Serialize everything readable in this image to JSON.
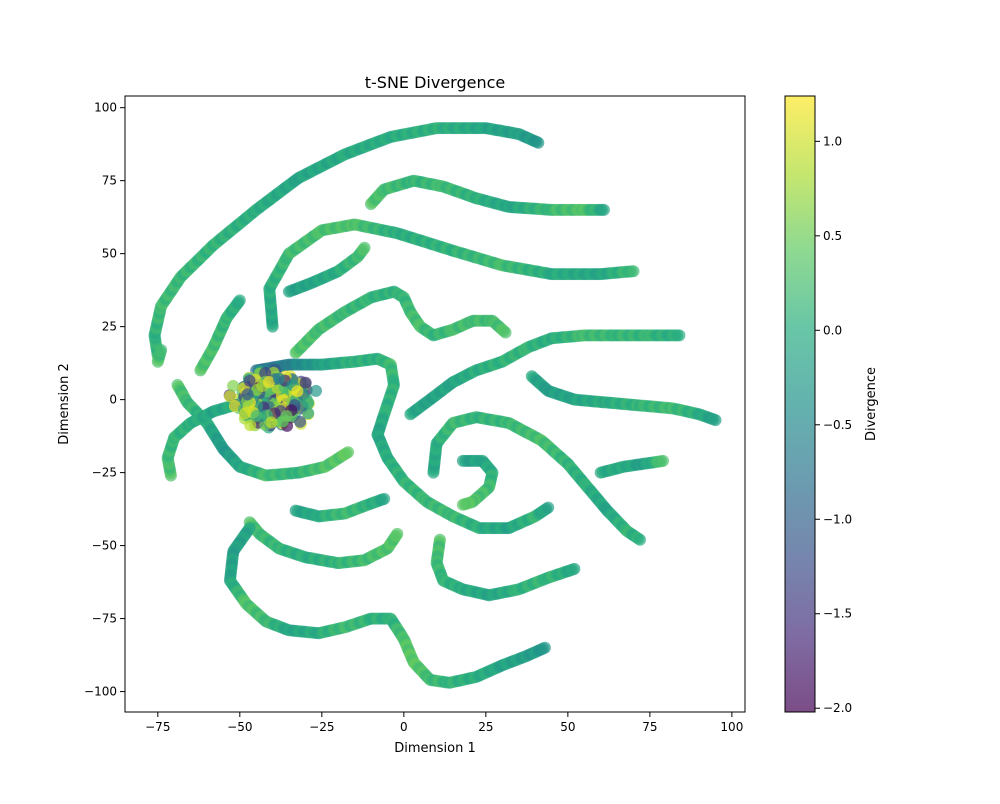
{
  "chart_data": {
    "type": "scatter",
    "title": "t-SNE Divergence",
    "xlabel": "Dimension 1",
    "ylabel": "Dimension 2",
    "xlim": [
      -85,
      104
    ],
    "ylim": [
      -107,
      104
    ],
    "xticks": [
      -75,
      -50,
      -25,
      0,
      25,
      50,
      75,
      100
    ],
    "yticks": [
      -100,
      -75,
      -50,
      -25,
      0,
      25,
      50,
      75,
      100
    ],
    "xtick_labels": [
      "−75",
      "−50",
      "−25",
      "0",
      "25",
      "50",
      "75",
      "100"
    ],
    "ytick_labels": [
      "−100",
      "−75",
      "−50",
      "−25",
      "0",
      "25",
      "50",
      "75",
      "100"
    ],
    "grid": false,
    "colormap": "viridis",
    "marker_alpha": 0.7,
    "colorbar": {
      "label": "Divergence",
      "range": [
        -2.02,
        1.24
      ],
      "ticks": [
        1.0,
        0.5,
        0.0,
        -0.5,
        -1.0,
        -1.5,
        -2.0
      ],
      "tick_labels": [
        "1.0",
        "0.5",
        "0.0",
        "−0.5",
        "−1.0",
        "−1.5",
        "−2.0"
      ]
    },
    "curves": [
      {
        "points": [
          [
            -75,
            15
          ],
          [
            -76,
            22
          ],
          [
            -74,
            32
          ],
          [
            -68,
            42
          ],
          [
            -58,
            53
          ],
          [
            -45,
            65
          ],
          [
            -32,
            76
          ],
          [
            -18,
            84
          ],
          [
            -4,
            90
          ],
          [
            10,
            93
          ],
          [
            25,
            93
          ],
          [
            35,
            91
          ],
          [
            41,
            88
          ]
        ],
        "values": [
          0.15,
          0.05,
          0.2,
          0.15,
          0.1,
          0.0,
          -0.1,
          -0.05,
          0.0,
          0.05,
          -0.1,
          -0.2,
          -0.3
        ]
      },
      {
        "points": [
          [
            -75,
            13
          ],
          [
            -74,
            17
          ]
        ],
        "values": [
          0.3,
          0.2
        ]
      },
      {
        "points": [
          [
            -10,
            67
          ],
          [
            -6,
            72
          ],
          [
            3,
            75
          ],
          [
            12,
            73
          ],
          [
            22,
            69
          ],
          [
            32,
            66
          ],
          [
            45,
            65
          ],
          [
            55,
            65
          ],
          [
            61,
            65
          ]
        ],
        "values": [
          0.3,
          0.25,
          0.1,
          0.2,
          0.05,
          -0.1,
          0.2,
          0.3,
          -0.1
        ]
      },
      {
        "points": [
          [
            -40,
            25
          ],
          [
            -41,
            38
          ],
          [
            -35,
            50
          ],
          [
            -25,
            58
          ],
          [
            -15,
            60
          ],
          [
            -2,
            57
          ],
          [
            15,
            51
          ],
          [
            30,
            46
          ],
          [
            45,
            43
          ],
          [
            60,
            43
          ],
          [
            70,
            44
          ]
        ],
        "values": [
          -0.1,
          0.0,
          0.2,
          0.25,
          0.3,
          0.0,
          0.1,
          0.2,
          0.0,
          -0.1,
          0.2
        ]
      },
      {
        "points": [
          [
            -35,
            37
          ],
          [
            -28,
            40
          ],
          [
            -20,
            44
          ],
          [
            -14,
            49
          ],
          [
            -12,
            52
          ]
        ],
        "values": [
          -0.2,
          -0.1,
          0.0,
          0.2,
          0.3
        ]
      },
      {
        "points": [
          [
            -62,
            10
          ],
          [
            -58,
            18
          ],
          [
            -54,
            28
          ],
          [
            -50,
            34
          ]
        ],
        "values": [
          0.3,
          0.25,
          0.1,
          0.0
        ]
      },
      {
        "points": [
          [
            -33,
            16
          ],
          [
            -26,
            24
          ],
          [
            -18,
            30
          ],
          [
            -10,
            35
          ],
          [
            -3,
            37
          ],
          [
            0,
            35
          ],
          [
            2,
            30
          ],
          [
            5,
            25
          ],
          [
            9,
            22
          ],
          [
            15,
            24
          ],
          [
            21,
            27
          ],
          [
            27,
            27
          ],
          [
            31,
            23
          ]
        ],
        "values": [
          0.3,
          0.25,
          0.15,
          0.1,
          0.05,
          0.1,
          0.2,
          0.25,
          0.1,
          0.2,
          0.25,
          0.2,
          0.3
        ]
      },
      {
        "points": [
          [
            -45,
            10
          ],
          [
            -35,
            12
          ],
          [
            -25,
            12
          ],
          [
            -15,
            13
          ],
          [
            -8,
            14
          ],
          [
            -4,
            12
          ],
          [
            -3,
            5
          ],
          [
            -6,
            -5
          ],
          [
            -8,
            -12
          ]
        ],
        "values": [
          -0.8,
          -0.6,
          -0.2,
          0.1,
          0.0,
          0.2,
          0.1,
          0.0,
          -0.1
        ]
      },
      {
        "points": [
          [
            -8,
            -12
          ],
          [
            -5,
            -20
          ],
          [
            0,
            -28
          ],
          [
            7,
            -35
          ],
          [
            15,
            -40
          ],
          [
            23,
            -44
          ],
          [
            32,
            -44
          ],
          [
            40,
            -40
          ],
          [
            44,
            -37
          ]
        ],
        "values": [
          -0.1,
          0.0,
          0.1,
          0.15,
          0.2,
          0.0,
          -0.1,
          0.1,
          -0.2
        ]
      },
      {
        "points": [
          [
            2,
            -5
          ],
          [
            8,
            0
          ],
          [
            15,
            6
          ],
          [
            22,
            10
          ],
          [
            30,
            13
          ],
          [
            38,
            18
          ],
          [
            45,
            21
          ],
          [
            55,
            22
          ],
          [
            65,
            22
          ],
          [
            75,
            22
          ],
          [
            84,
            22
          ]
        ],
        "values": [
          -0.1,
          -0.15,
          -0.1,
          0.0,
          0.1,
          0.1,
          0.0,
          0.2,
          0.15,
          0.1,
          0.0
        ]
      },
      {
        "points": [
          [
            39,
            8
          ],
          [
            44,
            3
          ],
          [
            52,
            0
          ],
          [
            62,
            -1
          ],
          [
            72,
            -2
          ],
          [
            82,
            -3
          ],
          [
            90,
            -5
          ],
          [
            95,
            -7
          ]
        ],
        "values": [
          -0.1,
          -0.2,
          -0.1,
          0.0,
          0.1,
          0.2,
          0.0,
          -0.2
        ]
      },
      {
        "points": [
          [
            9,
            -25
          ],
          [
            10,
            -15
          ],
          [
            15,
            -8
          ],
          [
            22,
            -6
          ],
          [
            32,
            -8
          ],
          [
            42,
            -14
          ],
          [
            50,
            -22
          ],
          [
            56,
            -30
          ],
          [
            62,
            -38
          ],
          [
            68,
            -45
          ],
          [
            72,
            -48
          ]
        ],
        "values": [
          -0.1,
          0.0,
          0.2,
          0.1,
          0.15,
          0.25,
          0.1,
          0.0,
          -0.1,
          0.1,
          0.0
        ]
      },
      {
        "points": [
          [
            18,
            -21
          ],
          [
            24,
            -21
          ],
          [
            27,
            -25
          ],
          [
            26,
            -30
          ],
          [
            21,
            -35
          ],
          [
            18,
            -36
          ]
        ],
        "values": [
          -0.2,
          -0.1,
          0.0,
          0.2,
          0.3,
          0.4
        ]
      },
      {
        "points": [
          [
            60,
            -25
          ],
          [
            67,
            -23
          ],
          [
            73,
            -22
          ],
          [
            79,
            -21
          ]
        ],
        "values": [
          -0.1,
          0.0,
          -0.2,
          0.3
        ]
      },
      {
        "points": [
          [
            -69,
            5
          ],
          [
            -66,
            -1
          ],
          [
            -60,
            -8
          ],
          [
            -55,
            -17
          ],
          [
            -50,
            -23
          ],
          [
            -42,
            -26
          ],
          [
            -32,
            -25
          ],
          [
            -24,
            -23
          ],
          [
            -17,
            -18
          ]
        ],
        "values": [
          0.3,
          0.2,
          0.0,
          -0.3,
          -0.1,
          0.2,
          0.1,
          0.3,
          0.4
        ]
      },
      {
        "points": [
          [
            -71,
            -26
          ],
          [
            -72,
            -20
          ],
          [
            -70,
            -13
          ],
          [
            -65,
            -8
          ],
          [
            -58,
            -4
          ],
          [
            -52,
            -2
          ]
        ],
        "values": [
          0.3,
          0.2,
          0.1,
          0.05,
          -0.1,
          0.0
        ]
      },
      {
        "points": [
          [
            -33,
            -38
          ],
          [
            -26,
            -40
          ],
          [
            -18,
            -39
          ],
          [
            -11,
            -36
          ],
          [
            -6,
            -34
          ]
        ],
        "values": [
          -0.2,
          0.0,
          0.2,
          0.1,
          -0.1
        ]
      },
      {
        "points": [
          [
            -47,
            -42
          ],
          [
            -44,
            -46
          ],
          [
            -38,
            -51
          ],
          [
            -30,
            -54
          ],
          [
            -20,
            -56
          ],
          [
            -12,
            -55
          ],
          [
            -5,
            -51
          ],
          [
            -2,
            -46
          ]
        ],
        "values": [
          0.3,
          0.2,
          0.1,
          0.0,
          0.1,
          0.2,
          0.3,
          0.35
        ]
      },
      {
        "points": [
          [
            11,
            -48
          ],
          [
            10,
            -56
          ],
          [
            12,
            -62
          ],
          [
            18,
            -65
          ],
          [
            26,
            -67
          ],
          [
            35,
            -65
          ],
          [
            44,
            -61
          ],
          [
            52,
            -58
          ]
        ],
        "values": [
          0.3,
          0.2,
          0.1,
          0.0,
          -0.1,
          0.05,
          0.15,
          -0.1
        ]
      },
      {
        "points": [
          [
            -47,
            -44
          ],
          [
            -52,
            -52
          ],
          [
            -53,
            -62
          ],
          [
            -48,
            -70
          ],
          [
            -42,
            -76
          ],
          [
            -35,
            -79
          ],
          [
            -26,
            -80
          ],
          [
            -18,
            -78
          ],
          [
            -10,
            -75
          ],
          [
            -4,
            -75
          ],
          [
            0,
            -82
          ],
          [
            3,
            -90
          ],
          [
            8,
            -96
          ],
          [
            14,
            -97
          ],
          [
            22,
            -95
          ],
          [
            30,
            -91
          ],
          [
            37,
            -88
          ],
          [
            43,
            -85
          ]
        ],
        "values": [
          -0.1,
          -0.2,
          -0.1,
          0.3,
          0.2,
          -0.1,
          0.0,
          0.2,
          0.1,
          0.0,
          0.3,
          0.4,
          0.2,
          0.1,
          0.0,
          -0.1,
          -0.2,
          -0.3
        ]
      }
    ],
    "cluster": {
      "center": [
        -40,
        0
      ],
      "radius": [
        14,
        11
      ],
      "values": [
        0.8,
        -1.2,
        1.0,
        -1.6,
        0.4,
        1.1,
        -0.8,
        0.2,
        1.2,
        -1.9,
        0.6,
        -0.3,
        0.9,
        -1.4,
        0.0,
        1.0,
        -0.6,
        0.5,
        -1.1,
        1.2,
        0.3,
        -1.7,
        0.7,
        -0.1,
        1.1,
        -0.9,
        0.4,
        -1.3,
        0.9,
        0.1
      ]
    }
  }
}
